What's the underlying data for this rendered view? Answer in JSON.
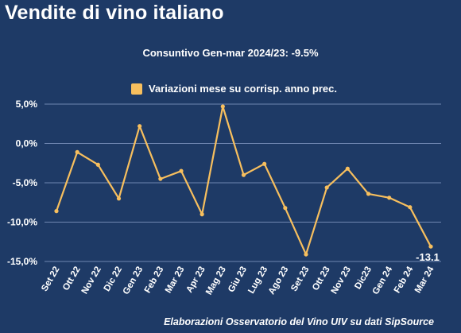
{
  "header": {
    "title": "Vendite di vino italiano",
    "subtitle": "Consuntivo Gen-mar 2024/23: -9.5%"
  },
  "footer": {
    "source": "Elaborazioni Osservatorio del Vino UIV su dati SipSource"
  },
  "colors": {
    "background": "#1e3a66",
    "series": "#f7bf5e",
    "grid": "#6f86b0",
    "text": "#ffffff"
  },
  "chart_data": {
    "type": "line",
    "categories": [
      "Set 22",
      "Ott 22",
      "Nov 22",
      "Dic 22",
      "Gen 23",
      "Feb 23",
      "Mar 23",
      "Apr 23",
      "Mag 23",
      "Giu 23",
      "Lug 23",
      "Ago 23",
      "Set 23",
      "Ott 23",
      "Nov 23",
      "Dic23",
      "Gen 24",
      "Feb 24",
      "Mar 24"
    ],
    "series": [
      {
        "name": "Variazioni mese su corrisp. anno prec.",
        "values": [
          -8.6,
          -1.1,
          -2.7,
          -7.0,
          2.2,
          -4.5,
          -3.5,
          -9.0,
          4.7,
          -4.0,
          -2.6,
          -8.2,
          -14.1,
          -5.6,
          -3.2,
          -6.4,
          -6.9,
          -8.1,
          -13.1
        ]
      }
    ],
    "ylim": [
      -15,
      5
    ],
    "yticks": [
      {
        "value": 5,
        "label": "5,0%"
      },
      {
        "value": 0,
        "label": "0,0%"
      },
      {
        "value": -5,
        "label": "-5,0%"
      },
      {
        "value": -10,
        "label": "-10,0%"
      },
      {
        "value": -15,
        "label": "-15,0%"
      }
    ],
    "data_labels": [
      {
        "index": 18,
        "text": "-13.1"
      }
    ],
    "grid": true,
    "legend": "top"
  }
}
